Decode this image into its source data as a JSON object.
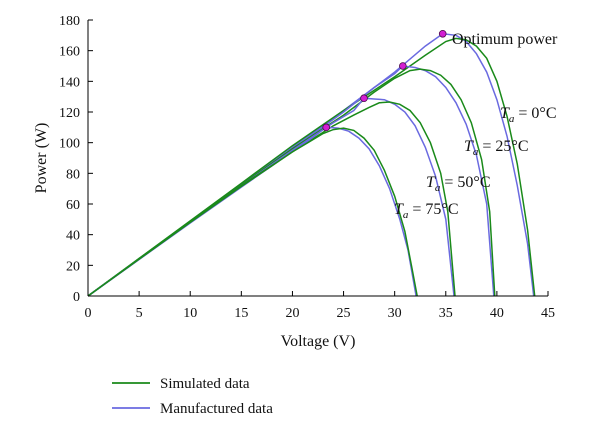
{
  "chart_data": {
    "type": "line",
    "title": "",
    "xlabel": "Voltage (V)",
    "ylabel": "Power (W)",
    "xlim": [
      0,
      45
    ],
    "ylim": [
      0,
      180
    ],
    "xticks": [
      0,
      5,
      10,
      15,
      20,
      25,
      30,
      35,
      40,
      45
    ],
    "yticks": [
      0,
      20,
      40,
      60,
      80,
      100,
      120,
      140,
      160,
      180
    ],
    "grid": false,
    "legend_position": "bottom-left",
    "colors": {
      "simulated": "#1a8a1a",
      "manufactured": "#6a6ae0",
      "marker": "#d21ed2"
    },
    "series": [
      {
        "name": "Simulated data",
        "color": "#1a8a1a"
      },
      {
        "name": "Manufactured data",
        "color": "#6a6ae0"
      }
    ],
    "curves": [
      {
        "label_prefix": "T",
        "label_sub": "a",
        "label_value": " = 0°C",
        "simulated": [
          [
            0,
            0
          ],
          [
            5,
            24.5
          ],
          [
            10,
            49
          ],
          [
            15,
            73.5
          ],
          [
            20,
            98
          ],
          [
            25,
            121
          ],
          [
            30,
            143
          ],
          [
            33,
            157
          ],
          [
            35,
            166
          ],
          [
            36,
            168
          ],
          [
            37,
            167
          ],
          [
            38,
            163
          ],
          [
            39,
            155
          ],
          [
            40,
            140
          ],
          [
            41,
            117
          ],
          [
            42,
            86
          ],
          [
            43,
            43
          ],
          [
            43.7,
            0
          ]
        ],
        "manufactured": [
          [
            0,
            0
          ],
          [
            5,
            24.3
          ],
          [
            10,
            48.6
          ],
          [
            15,
            73
          ],
          [
            20,
            97
          ],
          [
            25,
            121
          ],
          [
            30,
            146
          ],
          [
            33,
            163
          ],
          [
            34.7,
            171
          ],
          [
            36,
            170
          ],
          [
            37,
            166
          ],
          [
            38,
            158
          ],
          [
            39,
            146
          ],
          [
            40,
            128
          ],
          [
            41,
            104
          ],
          [
            42,
            72
          ],
          [
            43,
            34
          ],
          [
            43.6,
            0
          ]
        ]
      },
      {
        "label_prefix": "T",
        "label_sub": "a",
        "label_value": " = 25°C",
        "simulated": [
          [
            0,
            0
          ],
          [
            5,
            24.3
          ],
          [
            10,
            48.6
          ],
          [
            15,
            72.5
          ],
          [
            20,
            96
          ],
          [
            25,
            118
          ],
          [
            28,
            133
          ],
          [
            30,
            142
          ],
          [
            31.5,
            147
          ],
          [
            32.5,
            148
          ],
          [
            33.5,
            147
          ],
          [
            34.5,
            144
          ],
          [
            35.5,
            138
          ],
          [
            36.5,
            128
          ],
          [
            37.5,
            113
          ],
          [
            38.5,
            89
          ],
          [
            39.3,
            55
          ],
          [
            39.8,
            0
          ]
        ],
        "manufactured": [
          [
            0,
            0
          ],
          [
            5,
            24.1
          ],
          [
            10,
            48.2
          ],
          [
            15,
            72.3
          ],
          [
            20,
            96
          ],
          [
            25,
            120
          ],
          [
            28,
            136
          ],
          [
            30,
            145
          ],
          [
            30.8,
            150
          ],
          [
            32,
            149
          ],
          [
            33,
            147
          ],
          [
            34,
            143
          ],
          [
            35,
            136
          ],
          [
            36,
            126
          ],
          [
            37,
            112
          ],
          [
            38,
            92
          ],
          [
            39,
            60
          ],
          [
            39.7,
            0
          ]
        ]
      },
      {
        "label_prefix": "T",
        "label_sub": "a",
        "label_value": " = 50°C",
        "simulated": [
          [
            0,
            0
          ],
          [
            5,
            24.2
          ],
          [
            10,
            48.4
          ],
          [
            15,
            72
          ],
          [
            20,
            94
          ],
          [
            24,
            111
          ],
          [
            26,
            118
          ],
          [
            27.5,
            123
          ],
          [
            28.5,
            126
          ],
          [
            29.5,
            126.5
          ],
          [
            30.5,
            125
          ],
          [
            31.5,
            121
          ],
          [
            32.5,
            113
          ],
          [
            33.5,
            100
          ],
          [
            34.5,
            80
          ],
          [
            35.2,
            55
          ],
          [
            35.9,
            0
          ]
        ],
        "manufactured": [
          [
            0,
            0
          ],
          [
            5,
            24
          ],
          [
            10,
            48
          ],
          [
            15,
            72
          ],
          [
            20,
            95
          ],
          [
            24,
            113
          ],
          [
            26,
            121
          ],
          [
            27,
            129
          ],
          [
            28,
            128.5
          ],
          [
            29,
            128
          ],
          [
            30,
            125
          ],
          [
            31,
            120
          ],
          [
            32,
            111
          ],
          [
            33,
            97
          ],
          [
            34,
            78
          ],
          [
            35,
            50
          ],
          [
            35.8,
            0
          ]
        ]
      },
      {
        "label_prefix": "T",
        "label_sub": "a",
        "label_value": " = 75°C",
        "simulated": [
          [
            0,
            0
          ],
          [
            5,
            24
          ],
          [
            10,
            48
          ],
          [
            15,
            71.5
          ],
          [
            18,
            85
          ],
          [
            20,
            94
          ],
          [
            21.5,
            100
          ],
          [
            23,
            106
          ],
          [
            24,
            108.5
          ],
          [
            25,
            109.5
          ],
          [
            26,
            108
          ],
          [
            27,
            103
          ],
          [
            28,
            95
          ],
          [
            29,
            82
          ],
          [
            30,
            65
          ],
          [
            31,
            42
          ],
          [
            31.7,
            18
          ],
          [
            32.2,
            0
          ]
        ],
        "manufactured": [
          [
            0,
            0
          ],
          [
            5,
            23.8
          ],
          [
            10,
            47.6
          ],
          [
            15,
            71
          ],
          [
            18,
            85
          ],
          [
            20,
            94.5
          ],
          [
            21.5,
            101
          ],
          [
            23.3,
            110
          ],
          [
            24.5,
            109.5
          ],
          [
            25.5,
            107.5
          ],
          [
            26.5,
            103
          ],
          [
            27.5,
            96
          ],
          [
            28.5,
            85
          ],
          [
            29.5,
            70
          ],
          [
            30.5,
            50
          ],
          [
            31.3,
            30
          ],
          [
            32.1,
            0
          ]
        ]
      }
    ],
    "optimum_points": [
      [
        34.7,
        171
      ],
      [
        30.8,
        150
      ],
      [
        27,
        129
      ],
      [
        23.3,
        110
      ]
    ],
    "annotation": "Optimum power"
  }
}
